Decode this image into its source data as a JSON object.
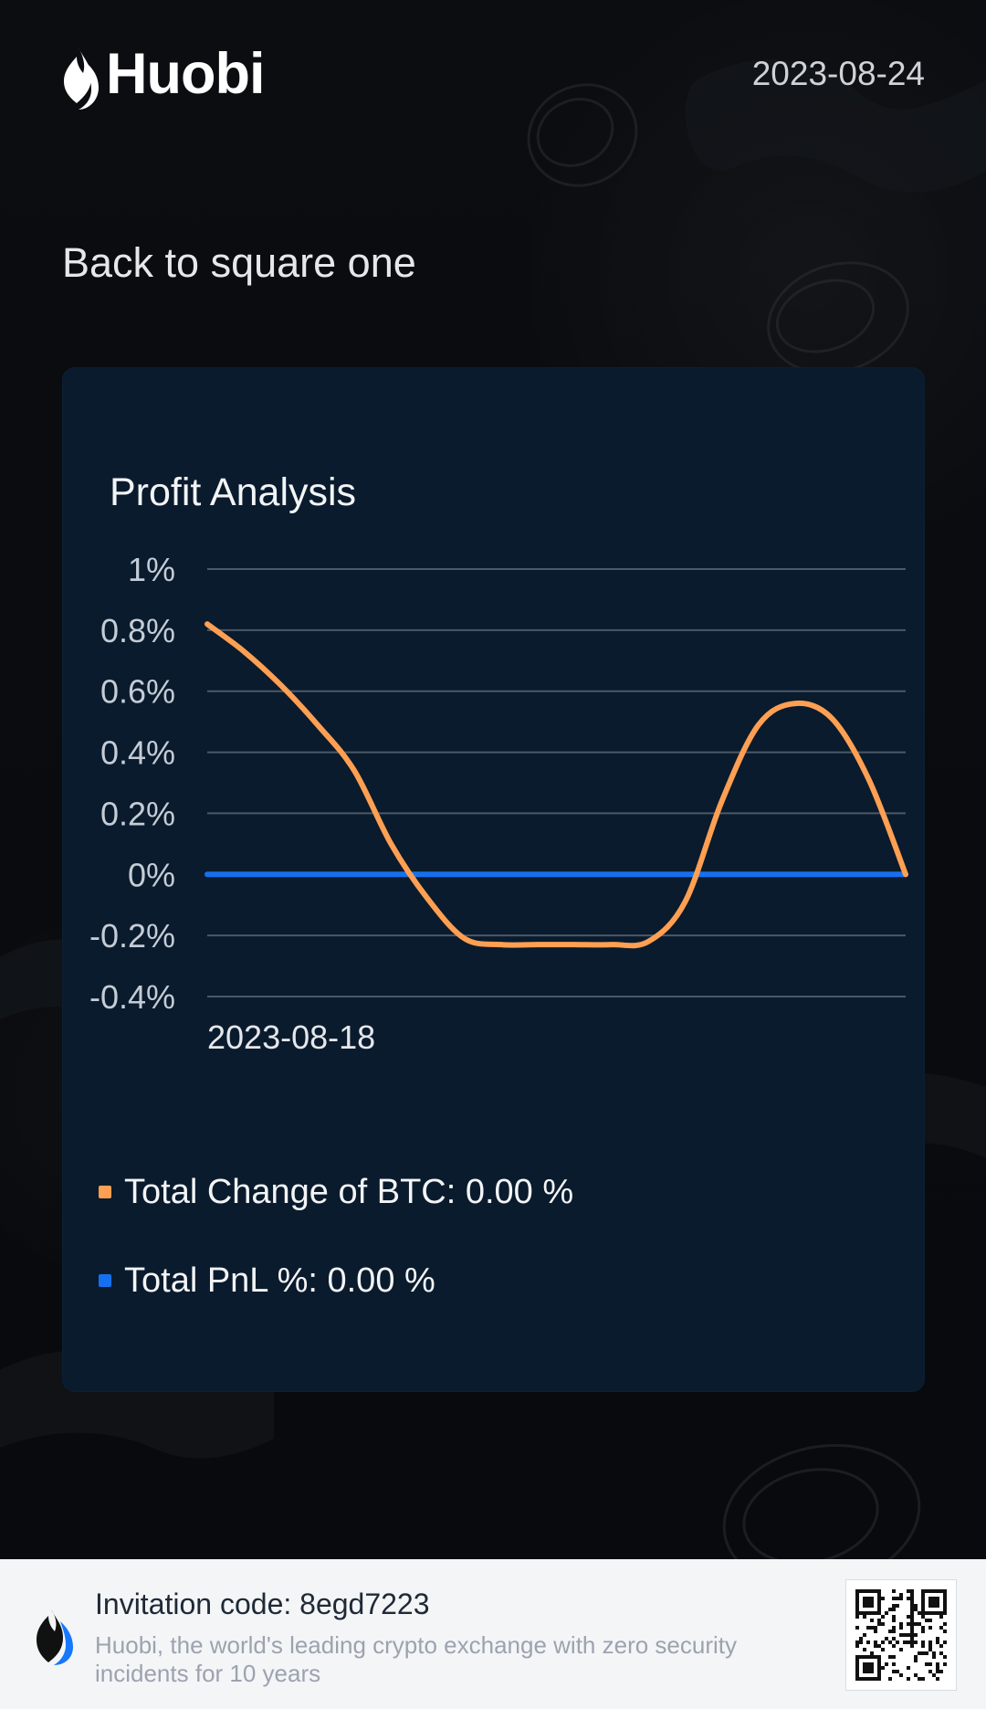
{
  "header": {
    "brand": "Huobi",
    "date": "2023-08-24"
  },
  "headline": "Back to square one",
  "chart": {
    "title": "Profit Analysis",
    "legend": {
      "change_label": "Total Change of BTC: 0.00 %",
      "pnl_label": "Total PnL %: 0.00 %"
    }
  },
  "footer": {
    "invitation_label": "Invitation code: 8egd7223",
    "tagline": "Huobi, the world's leading crypto exchange with zero security incidents for 10 years"
  },
  "colors": {
    "page_bg": "#0b0d10",
    "panel_bg": "#0a1b2d",
    "grid": "#51606f",
    "orange": "#ff9f52",
    "blue": "#1570ef",
    "footer_bg": "#f3f5f7",
    "footer_text": "#1f2937"
  },
  "icons": {
    "brand_mark": "flame-icon",
    "footer_brand_mark": "flame-icon",
    "qr": "qr-code-icon"
  },
  "chart_data": {
    "type": "line",
    "title": "Profit Analysis",
    "categories": [
      "2023-08-18",
      "",
      "",
      "",
      "",
      "",
      "",
      "",
      "",
      "",
      "",
      "",
      "",
      "",
      "",
      "",
      "",
      "",
      "",
      ""
    ],
    "series": [
      {
        "name": "Total Change of BTC",
        "values": [
          0.82,
          0.73,
          0.62,
          0.49,
          0.34,
          0.1,
          -0.08,
          -0.21,
          -0.23,
          -0.23,
          -0.23,
          -0.23,
          -0.22,
          -0.09,
          0.24,
          0.49,
          0.56,
          0.51,
          0.31,
          0.0
        ]
      },
      {
        "name": "Total PnL %",
        "values": [
          0,
          0,
          0,
          0,
          0,
          0,
          0,
          0,
          0,
          0,
          0,
          0,
          0,
          0,
          0,
          0,
          0,
          0,
          0,
          0
        ]
      }
    ],
    "xlabel": "",
    "ylabel": "",
    "ylim": [
      -0.4,
      1.0
    ],
    "yticks": [
      "1%",
      "0.8%",
      "0.6%",
      "0.4%",
      "0.2%",
      "0%",
      "-0.2%",
      "-0.4%"
    ],
    "x_tick_labels": [
      "2023-08-18"
    ],
    "grid": true,
    "legend": "bottom-left"
  }
}
